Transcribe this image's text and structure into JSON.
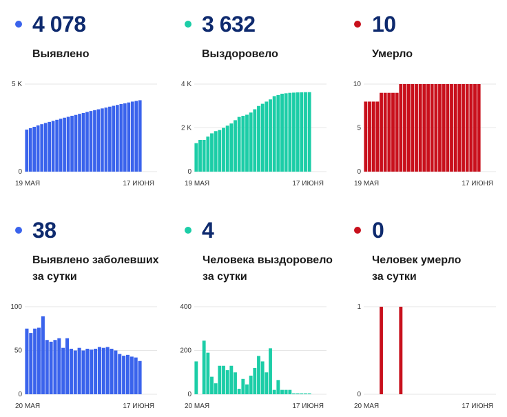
{
  "colors": {
    "blue": "#3a63ec",
    "teal": "#1ccda7",
    "red": "#c8101c",
    "number": "#0e2a6e",
    "grid": "#e6e6e6"
  },
  "panels": [
    {
      "value": "4 078",
      "label1": "Выявлено",
      "label2": "",
      "color": "#3a63ec"
    },
    {
      "value": "3 632",
      "label1": "Выздоровело",
      "label2": "",
      "color": "#1ccda7"
    },
    {
      "value": "10",
      "label1": "Умерло",
      "label2": "",
      "color": "#c8101c"
    },
    {
      "value": "38",
      "label1": "Выявлено заболевших",
      "label2": "за сутки",
      "color": "#3a63ec"
    },
    {
      "value": "4",
      "label1": "Человека выздоровело",
      "label2": "за сутки",
      "color": "#1ccda7"
    },
    {
      "value": "0",
      "label1": "Человек умерло",
      "label2": "за сутки",
      "color": "#c8101c"
    }
  ],
  "chart_data": [
    {
      "type": "bar",
      "title": "Выявлено",
      "x_start_label": "19 МАЯ",
      "x_end_label": "17 ИЮНЯ",
      "y_ticks": [
        0,
        5000
      ],
      "y_tick_labels": [
        "0",
        "5 K"
      ],
      "ylim": [
        0,
        5000
      ],
      "color": "#3a63ec",
      "values": [
        2400,
        2480,
        2560,
        2640,
        2710,
        2780,
        2840,
        2900,
        2960,
        3020,
        3080,
        3130,
        3190,
        3240,
        3300,
        3350,
        3410,
        3460,
        3510,
        3560,
        3610,
        3660,
        3710,
        3760,
        3810,
        3860,
        3900,
        3950,
        4000,
        4040,
        4078
      ]
    },
    {
      "type": "bar",
      "title": "Выздоровело",
      "x_start_label": "19 МАЯ",
      "x_end_label": "17 ИЮНЯ",
      "y_ticks": [
        0,
        2000,
        4000
      ],
      "y_tick_labels": [
        "0",
        "2 K",
        "4 K"
      ],
      "ylim": [
        0,
        4000
      ],
      "color": "#1ccda7",
      "values": [
        1300,
        1450,
        1450,
        1600,
        1750,
        1850,
        1900,
        2000,
        2100,
        2200,
        2350,
        2500,
        2550,
        2600,
        2700,
        2850,
        3000,
        3100,
        3200,
        3300,
        3450,
        3500,
        3560,
        3580,
        3600,
        3610,
        3620,
        3625,
        3630,
        3632
      ]
    },
    {
      "type": "bar",
      "title": "Умерло",
      "x_start_label": "19 МАЯ",
      "x_end_label": "17 ИЮНЯ",
      "y_ticks": [
        0,
        5,
        10
      ],
      "y_tick_labels": [
        "0",
        "5",
        "10"
      ],
      "ylim": [
        0,
        10
      ],
      "color": "#c8101c",
      "values": [
        8,
        8,
        8,
        8,
        9,
        9,
        9,
        9,
        9,
        10,
        10,
        10,
        10,
        10,
        10,
        10,
        10,
        10,
        10,
        10,
        10,
        10,
        10,
        10,
        10,
        10,
        10,
        10,
        10,
        10
      ]
    },
    {
      "type": "bar",
      "title": "Выявлено заболевших за сутки",
      "x_start_label": "20 МАЯ",
      "x_end_label": "17 ИЮНЯ",
      "y_ticks": [
        0,
        50,
        100
      ],
      "y_tick_labels": [
        "0",
        "50",
        "100"
      ],
      "ylim": [
        0,
        100
      ],
      "color": "#3a63ec",
      "values": [
        75,
        70,
        75,
        76,
        89,
        62,
        60,
        62,
        64,
        53,
        64,
        52,
        50,
        53,
        50,
        52,
        51,
        52,
        54,
        53,
        54,
        52,
        50,
        46,
        44,
        45,
        43,
        42,
        38
      ]
    },
    {
      "type": "bar",
      "title": "Человека выздоровело за сутки",
      "x_start_label": "20 МАЯ",
      "x_end_label": "17 ИЮНЯ",
      "y_ticks": [
        0,
        200,
        400
      ],
      "y_tick_labels": [
        "0",
        "200",
        "400"
      ],
      "ylim": [
        0,
        400
      ],
      "color": "#1ccda7",
      "values": [
        150,
        0,
        245,
        190,
        80,
        50,
        130,
        130,
        110,
        130,
        100,
        25,
        70,
        45,
        85,
        120,
        175,
        150,
        100,
        210,
        20,
        65,
        20,
        20,
        20,
        4,
        4,
        4,
        4,
        4
      ]
    },
    {
      "type": "bar",
      "title": "Человек умерло за сутки",
      "x_start_label": "20 МАЯ",
      "x_end_label": "17 ИЮНЯ",
      "y_ticks": [
        0,
        1
      ],
      "y_tick_labels": [
        "0",
        "1"
      ],
      "ylim": [
        0,
        1
      ],
      "color": "#c8101c",
      "values": [
        0,
        0,
        0,
        0,
        1,
        0,
        0,
        0,
        0,
        1,
        0,
        0,
        0,
        0,
        0,
        0,
        0,
        0,
        0,
        0,
        0,
        0,
        0,
        0,
        0,
        0,
        0,
        0,
        0,
        0
      ]
    }
  ]
}
